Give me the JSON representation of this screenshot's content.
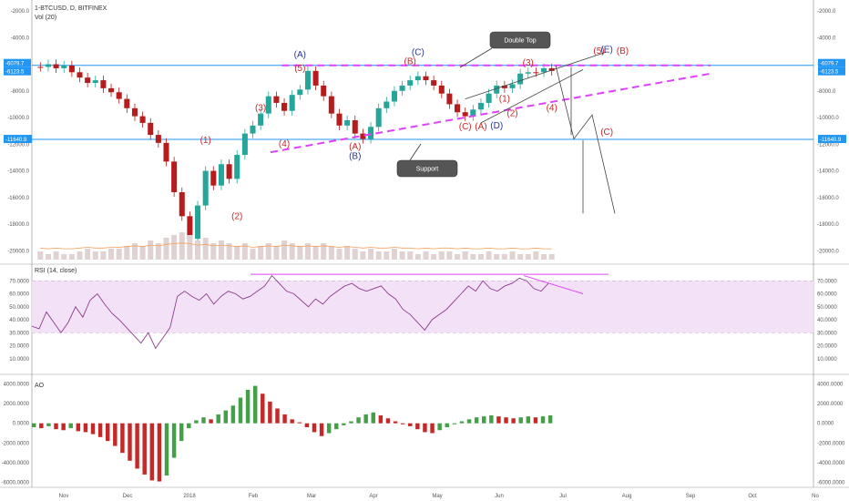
{
  "header": {
    "symbol": "1-BTCUSD, D, BITFINEX",
    "volume_label": "Vol (20)",
    "rsi_label": "RSI (14, close)",
    "ao_label": "AO"
  },
  "colors": {
    "up": "#26a69a",
    "down": "#b71c1c",
    "pink": "#e040fb",
    "line": "#2196f3",
    "rsi": "#8e3a8e",
    "label_red": "#c62828",
    "label_blue": "#283593",
    "volume_ma": "#f5a15a"
  },
  "chart_data": [
    {
      "type": "candlestick",
      "pane": "price",
      "yaxis_inverted": true,
      "ylim": [
        -2000,
        -21000
      ],
      "y_ticks": [
        "-2000.0",
        "-4000.0",
        "-6000.0",
        "-8000.0",
        "-10000.0",
        "-12000.0",
        "-14000.0",
        "-16000.0",
        "-18000.0",
        "-20000.0"
      ],
      "x_ticks": [
        "Nov",
        "Dec",
        "2018",
        "Feb",
        "Mar",
        "Apr",
        "May",
        "Jun",
        "Jul",
        "Aug",
        "Sep",
        "Oct",
        "No"
      ],
      "level_labels": {
        "resistance_a": "-6079.7",
        "resistance_b": "-6123.5",
        "support": "-11640.9"
      },
      "levels": {
        "resistance": -6079.7,
        "support": -11640.9
      },
      "series": [
        {
          "values": [
            -6200,
            -6000,
            -6300,
            -6100,
            -6600,
            -7000,
            -7400,
            -7200,
            -7800,
            -8100,
            -8600,
            -9300,
            -9900,
            -10400,
            -11300,
            -11900,
            -13300,
            -15600,
            -17400,
            -19100,
            -16600,
            -14000,
            -15100,
            -13500,
            -14600,
            -12800,
            -11200,
            -10600,
            -9700,
            -8400,
            -8900,
            -9500,
            -8300,
            -7900,
            -6500,
            -7600,
            -8400,
            -9700,
            -10600,
            -10200,
            -11200,
            -11600,
            -10700,
            -9300,
            -8800,
            -8000,
            -7600,
            -7200,
            -6900,
            -7200,
            -7600,
            -8200,
            -9000,
            -9600,
            -9900,
            -9400,
            -8900,
            -8200,
            -7600,
            -7800,
            -7500,
            -6700,
            -6600,
            -6600,
            -6300,
            -6500
          ]
        }
      ],
      "annotations": {
        "wave_labels": [
          {
            "text": "(A)",
            "date_index": 33,
            "price": -5500,
            "color": "blue"
          },
          {
            "text": "(5)",
            "date_index": 33,
            "price": -6500,
            "color": "red"
          },
          {
            "text": "(3)",
            "date_index": 28,
            "price": -9500,
            "color": "red"
          },
          {
            "text": "(4)",
            "date_index": 31,
            "price": -12200,
            "color": "red"
          },
          {
            "text": "(1)",
            "date_index": 21,
            "price": -11900,
            "color": "red"
          },
          {
            "text": "(2)",
            "date_index": 25,
            "price": -17600,
            "color": "red"
          },
          {
            "text": "(A)",
            "date_index": 40,
            "price": -12400,
            "color": "red"
          },
          {
            "text": "(B)",
            "date_index": 40,
            "price": -13100,
            "color": "blue"
          },
          {
            "text": "(B)",
            "date_index": 47,
            "price": -6000,
            "color": "red"
          },
          {
            "text": "(C)",
            "date_index": 48,
            "price": -5300,
            "color": "blue"
          },
          {
            "text": "(3)",
            "date_index": 62,
            "price": -6100,
            "color": "red"
          },
          {
            "text": "(1)",
            "date_index": 59,
            "price": -8800,
            "color": "red"
          },
          {
            "text": "(2)",
            "date_index": 60,
            "price": -9900,
            "color": "red"
          },
          {
            "text": "(4)",
            "date_index": 65,
            "price": -9500,
            "color": "red"
          },
          {
            "text": "(C)",
            "date_index": 54,
            "price": -10900,
            "color": "red"
          },
          {
            "text": "(A)",
            "date_index": 56,
            "price": -10900,
            "color": "red"
          },
          {
            "text": "(D)",
            "date_index": 58,
            "price": -10800,
            "color": "blue"
          },
          {
            "text": "(5)",
            "date_index": 71,
            "price": -5200,
            "color": "red"
          },
          {
            "text": "(E)",
            "date_index": 72,
            "price": -5100,
            "color": "blue"
          },
          {
            "text": "(B)",
            "date_index": 74,
            "price": -5200,
            "color": "red"
          },
          {
            "text": "(C)",
            "date_index": 72,
            "price": -11300,
            "color": "red"
          }
        ],
        "callouts": [
          {
            "text": "Double Top"
          },
          {
            "text": "Support"
          }
        ]
      }
    },
    {
      "type": "bar",
      "pane": "volume",
      "note_values_relative": true,
      "values": [
        0.3,
        0.2,
        0.3,
        0.2,
        0.2,
        0.3,
        0.4,
        0.3,
        0.3,
        0.4,
        0.4,
        0.5,
        0.6,
        0.5,
        0.7,
        0.6,
        0.8,
        0.9,
        1.0,
        0.9,
        0.7,
        0.8,
        0.6,
        0.7,
        0.6,
        0.5,
        0.6,
        0.4,
        0.5,
        0.6,
        0.5,
        0.7,
        0.6,
        0.5,
        0.6,
        0.5,
        0.6,
        0.5,
        0.4,
        0.5,
        0.4,
        0.3,
        0.4,
        0.3,
        0.3,
        0.4,
        0.3,
        0.3,
        0.2,
        0.3,
        0.2,
        0.3,
        0.3,
        0.2,
        0.3,
        0.2,
        0.2,
        0.3,
        0.2,
        0.2,
        0.3,
        0.2,
        0.2,
        0.3,
        0.2,
        0.2
      ]
    },
    {
      "type": "line",
      "pane": "rsi",
      "ylim": [
        0,
        80
      ],
      "y_ticks": [
        "70.0000",
        "60.0000",
        "50.0000",
        "40.0000",
        "30.0000",
        "20.0000",
        "10.0000"
      ],
      "band": [
        30,
        70
      ],
      "values": [
        35,
        33,
        46,
        38,
        30,
        38,
        50,
        42,
        55,
        60,
        52,
        45,
        40,
        34,
        28,
        22,
        30,
        18,
        26,
        34,
        58,
        62,
        58,
        55,
        60,
        52,
        58,
        62,
        60,
        56,
        58,
        62,
        66,
        74,
        68,
        62,
        60,
        55,
        50,
        56,
        52,
        58,
        62,
        66,
        68,
        64,
        62,
        64,
        66,
        60,
        56,
        48,
        44,
        38,
        32,
        40,
        44,
        48,
        54,
        60,
        66,
        62,
        70,
        64,
        62,
        66,
        68,
        72,
        70,
        64,
        62,
        68
      ]
    },
    {
      "type": "bar",
      "pane": "ao",
      "ylim": [
        -6500,
        4500
      ],
      "y_ticks": [
        "4000.0000",
        "2000.0000",
        "0.0000",
        "-2000.0000",
        "-4000.0000",
        "-6000.0000"
      ],
      "values": [
        -400,
        -500,
        -300,
        -600,
        -700,
        -500,
        -800,
        -900,
        -1100,
        -1400,
        -1800,
        -2300,
        -3000,
        -3800,
        -4600,
        -5200,
        -5800,
        -5900,
        -5300,
        -3500,
        -1800,
        -500,
        300,
        600,
        400,
        900,
        1300,
        1800,
        2600,
        3400,
        3800,
        3000,
        2200,
        1500,
        900,
        400,
        100,
        -400,
        -900,
        -1300,
        -1000,
        -600,
        -200,
        200,
        600,
        900,
        1100,
        800,
        500,
        200,
        -100,
        -300,
        -600,
        -900,
        -1000,
        -700,
        -400,
        -100,
        200,
        400,
        600,
        700,
        800,
        700,
        600,
        500,
        600,
        700,
        600,
        700,
        800
      ]
    }
  ]
}
